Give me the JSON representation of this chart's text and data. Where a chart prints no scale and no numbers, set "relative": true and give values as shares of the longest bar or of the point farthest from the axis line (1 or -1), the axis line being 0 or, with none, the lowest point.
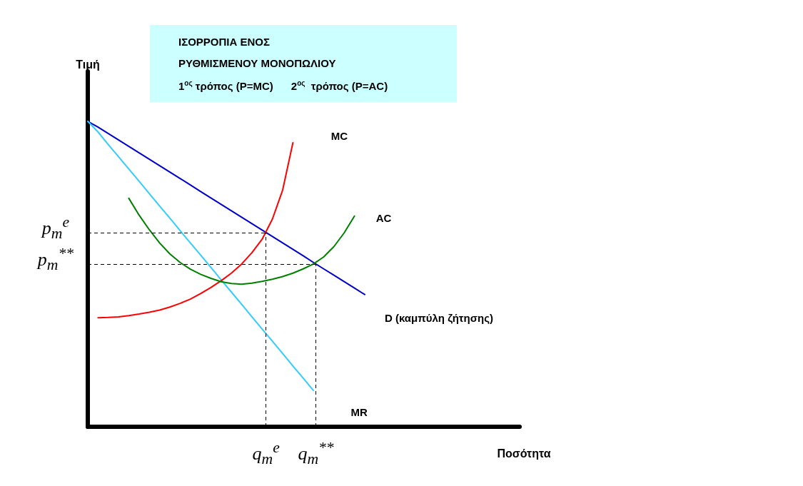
{
  "chart_data": {
    "type": "line",
    "title": "ΙΣΟΡΡΟΠΙΑ ΕΝΟΣ  ΡΥΘΜΙΣΜΕΝΟΥ ΜΟΝΟΠΩΛΙΟΥ",
    "subtitle": "1$^{ος}$ τρόπος (P=MC)      2$^{ος}$  τρόπος (P=AC)",
    "xlabel": "Ποσότητα",
    "ylabel": "Τιμή",
    "relative": true,
    "grid": false,
    "legend": false,
    "marker": "none",
    "line_style": "solid",
    "categories": [
      null,
      null,
      null,
      null,
      null,
      null,
      null,
      null,
      null,
      null,
      null,
      null,
      null,
      null,
      null,
      null,
      null,
      null,
      null,
      null,
      null,
      null,
      null,
      null,
      null,
      null,
      null,
      null,
      null,
      null,
      null,
      null,
      null,
      null,
      null,
      null,
      null,
      null,
      null,
      null,
      null
    ],
    "ref_lines": [
      {
        "axis": "x",
        "label": "q$_{m}$$^{e}$",
        "line_style": "dashed",
        "color": "#000000"
      },
      {
        "axis": "x",
        "label": "q$_{m}$$^{**}$",
        "line_style": "dashed",
        "color": "#000000"
      },
      {
        "axis": "y",
        "value": 0.636,
        "label": "p$_{m}$$^{e}$",
        "line_style": "dashed",
        "color": "#000000"
      },
      {
        "axis": "y",
        "value": 0.533,
        "label": "p$_{m}$$^{**}$",
        "line_style": "dashed",
        "color": "#000000"
      }
    ],
    "series": [
      {
        "name": "D (καμπύλη ζήτησης)",
        "color": "#0000cc",
        "values": [
          1.0,
          0.981,
          0.96,
          0.939,
          0.918,
          0.897,
          0.876,
          0.855,
          0.834,
          0.813,
          0.792,
          0.77,
          0.749,
          0.728,
          0.707,
          0.686,
          0.665,
          0.644,
          0.623,
          0.602,
          0.581,
          0.56,
          0.538,
          0.517,
          0.496,
          0.475,
          0.454,
          0.433,
          null,
          null,
          null,
          null,
          null,
          null,
          null,
          null,
          null,
          null,
          null,
          null,
          null
        ]
      },
      {
        "name": "MR",
        "color": "#33ccff",
        "values": [
          1.0,
          0.965,
          0.924,
          0.884,
          0.844,
          0.804,
          0.763,
          0.723,
          0.683,
          0.642,
          0.602,
          0.562,
          0.522,
          0.481,
          0.441,
          0.401,
          0.36,
          0.32,
          0.28,
          0.24,
          0.199,
          0.159,
          0.119,
          null,
          null,
          null,
          null,
          null,
          null,
          null,
          null,
          null,
          null,
          null,
          null,
          null,
          null,
          null,
          null,
          null,
          null
        ]
      },
      {
        "name": "MC",
        "color": "#ff0000",
        "values": [
          null,
          0.357,
          0.358,
          0.36,
          0.364,
          0.369,
          0.375,
          0.382,
          0.392,
          0.404,
          0.418,
          0.436,
          0.456,
          0.478,
          0.503,
          0.533,
          0.57,
          0.614,
          0.68,
          0.775,
          0.93,
          null,
          null,
          null,
          null,
          null,
          null,
          null,
          null,
          null,
          null,
          null,
          null,
          null,
          null,
          null,
          null,
          null,
          null,
          null,
          null
        ]
      },
      {
        "name": "AC",
        "color": "#008000",
        "values": [
          null,
          null,
          null,
          null,
          0.748,
          0.693,
          0.645,
          0.602,
          0.566,
          0.538,
          0.516,
          0.499,
          0.486,
          0.475,
          0.469,
          0.467,
          0.47,
          0.476,
          0.483,
          0.492,
          0.503,
          0.517,
          0.533,
          0.556,
          0.59,
          0.635,
          0.69,
          null,
          null,
          null,
          null,
          null,
          null,
          null,
          null,
          null,
          null,
          null,
          null,
          null,
          null
        ]
      }
    ]
  }
}
